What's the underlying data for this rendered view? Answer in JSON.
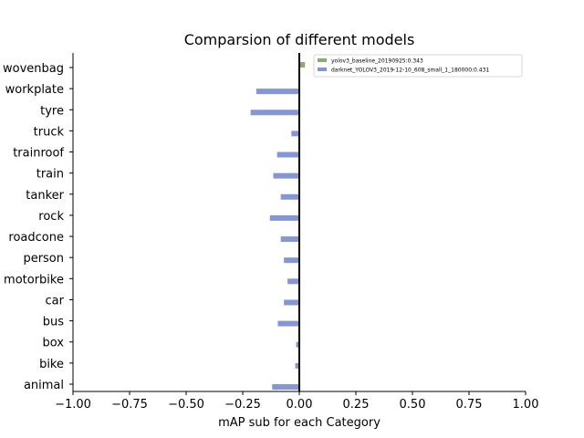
{
  "chart_data": {
    "type": "bar",
    "orientation": "horizontal",
    "title": "Comparsion of different models",
    "xlabel": "mAP sub for each Category",
    "ylabel": "",
    "xlim": [
      -1.0,
      1.0
    ],
    "xticks": [
      "−1.00",
      "−0.75",
      "−0.50",
      "−0.25",
      "0.00",
      "0.25",
      "0.50",
      "0.75",
      "1.00"
    ],
    "xtick_values": [
      -1.0,
      -0.75,
      -0.5,
      -0.25,
      0.0,
      0.25,
      0.5,
      0.75,
      1.0
    ],
    "categories": [
      "animal",
      "bike",
      "box",
      "bus",
      "car",
      "motorbike",
      "person",
      "roadcone",
      "rock",
      "tanker",
      "train",
      "trainroof",
      "truck",
      "tyre",
      "workplate",
      "wovenbag"
    ],
    "series": [
      {
        "name": "yolov3_baseline_20190925:0.343",
        "color": "#8aab6e",
        "values": [
          0,
          0,
          0,
          0,
          0,
          0,
          0,
          0,
          0,
          0,
          0,
          0,
          0,
          0,
          0,
          0.025
        ]
      },
      {
        "name": "darknet_YOLOV3_2019-12-10_608_small_1_180000:0.431",
        "color": "#8497d4",
        "values": [
          -0.12,
          -0.018,
          -0.014,
          -0.095,
          -0.068,
          -0.052,
          -0.068,
          -0.082,
          -0.13,
          -0.082,
          -0.115,
          -0.098,
          -0.035,
          -0.215,
          -0.19,
          0
        ]
      }
    ],
    "legend_position": "top-right",
    "grid": false
  }
}
